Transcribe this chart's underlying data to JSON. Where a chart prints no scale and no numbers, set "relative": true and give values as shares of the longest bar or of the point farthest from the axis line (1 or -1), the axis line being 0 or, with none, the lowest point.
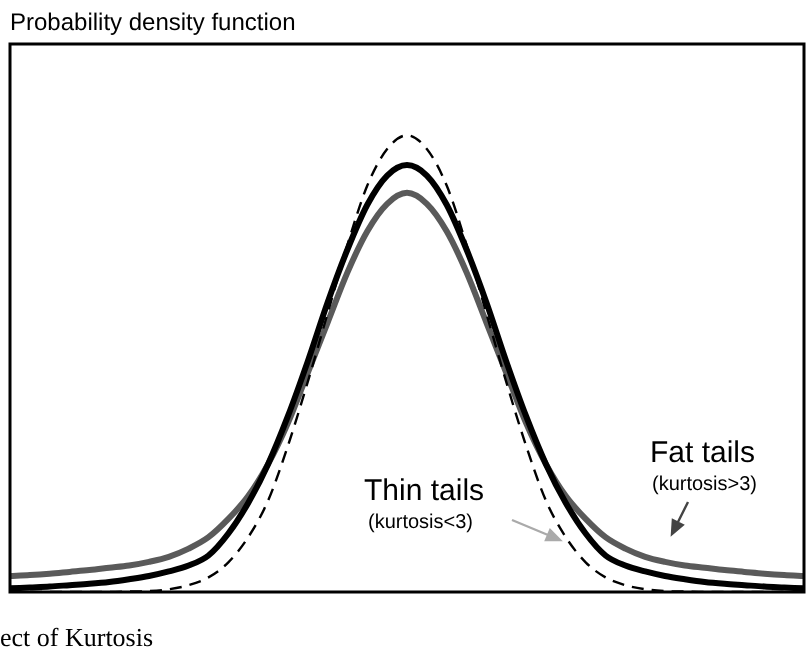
{
  "chart_data": {
    "type": "line",
    "relative": true,
    "title": "Probability density function",
    "categories": [
      null,
      null,
      null,
      null,
      null,
      null,
      null,
      null,
      null,
      null,
      null,
      null,
      null,
      null,
      null,
      null,
      null,
      null,
      null,
      null,
      null,
      null,
      null,
      null,
      null,
      null,
      null,
      null,
      null,
      null,
      null,
      null,
      null,
      null,
      null,
      null,
      null,
      null,
      null,
      null,
      null
    ],
    "series": [
      {
        "color": "#000000",
        "line_style": "dashed",
        "values": [
          0,
          0,
          0,
          0,
          0,
          0,
          0.001,
          0.002,
          0.006,
          0.015,
          0.032,
          0.065,
          0.12,
          0.2,
          0.32,
          0.46,
          0.61,
          0.76,
          0.89,
          0.97,
          1,
          0.97,
          0.89,
          0.76,
          0.61,
          0.46,
          0.32,
          0.2,
          0.12,
          0.065,
          0.032,
          0.015,
          0.006,
          0.002,
          0.001,
          0,
          0,
          0,
          0,
          0,
          0
        ]
      },
      {
        "color": "#000000",
        "line_style": "solid",
        "values": [
          0.008,
          0.01,
          0.012,
          0.015,
          0.018,
          0.022,
          0.028,
          0.035,
          0.045,
          0.058,
          0.08,
          0.128,
          0.195,
          0.28,
          0.385,
          0.505,
          0.634,
          0.75,
          0.848,
          0.912,
          0.935,
          0.912,
          0.848,
          0.75,
          0.634,
          0.505,
          0.385,
          0.28,
          0.195,
          0.128,
          0.08,
          0.058,
          0.045,
          0.035,
          0.028,
          0.022,
          0.018,
          0.015,
          0.012,
          0.01,
          0.008
        ]
      },
      {
        "color": "#5a5a5a",
        "line_style": "solid",
        "values": [
          0.035,
          0.037,
          0.04,
          0.044,
          0.048,
          0.053,
          0.058,
          0.066,
          0.077,
          0.095,
          0.12,
          0.16,
          0.21,
          0.28,
          0.37,
          0.48,
          0.59,
          0.7,
          0.79,
          0.85,
          0.874,
          0.85,
          0.79,
          0.7,
          0.59,
          0.48,
          0.37,
          0.28,
          0.21,
          0.16,
          0.12,
          0.095,
          0.077,
          0.066,
          0.058,
          0.053,
          0.048,
          0.044,
          0.04,
          0.037,
          0.035
        ]
      }
    ],
    "annotations": [
      "Thin tails",
      "(kurtosis<3)",
      "Fat tails",
      "(kurtosis>3)",
      "ect of Kurtosis"
    ],
    "legend": false,
    "marker": "none"
  }
}
